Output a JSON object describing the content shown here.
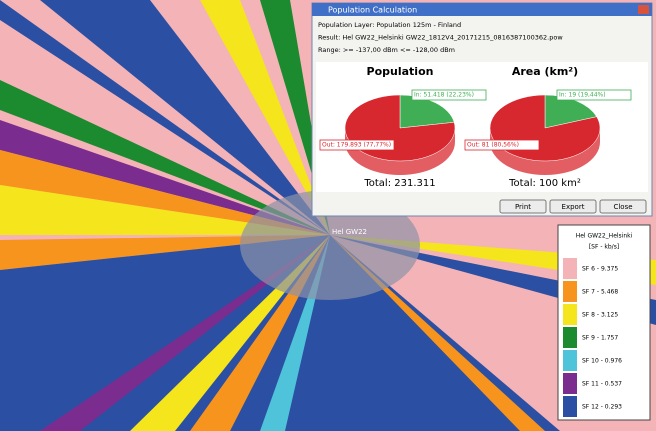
{
  "window": {
    "title": "Population Calculation",
    "info": [
      "Population Layer: Population 125m - Finland",
      "Result: Hel GW22_Helsinki GW22_1812V4_20171215_0816387100362.pow",
      "Range: >= -137,00 dBm <= -128,00 dBm"
    ],
    "pies": [
      {
        "title": "Population",
        "total": "Total: 231.311",
        "slices": [
          {
            "label": "In: 51.418 (22,23%)",
            "percent": 22.23,
            "color": "#3fae55"
          },
          {
            "label": "Out: 179.893 (77,77%)",
            "percent": 77.77,
            "color": "#d8282f"
          }
        ]
      },
      {
        "title": "Area (km²)",
        "total": "Total: 100 km²",
        "slices": [
          {
            "label": "In: 19 (19,44%)",
            "percent": 19.44,
            "color": "#3fae55"
          },
          {
            "label": "Out: 81 (80,56%)",
            "percent": 80.56,
            "color": "#d8282f"
          }
        ]
      }
    ],
    "buttons": [
      "Print",
      "Export",
      "Close"
    ]
  },
  "map": {
    "site_label": "Hel GW22"
  },
  "legend": {
    "title": "Hel GW22_Helsinki",
    "unit": "[SF - kb/s]",
    "items": [
      {
        "label": "SF 6 - 9.375",
        "color": "#f4b3b6"
      },
      {
        "label": "SF 7 - 5.468",
        "color": "#f7941d"
      },
      {
        "label": "SF 8 - 3.125",
        "color": "#f4e51c"
      },
      {
        "label": "SF 9 - 1.757",
        "color": "#1c8a2e"
      },
      {
        "label": "SF 10 - 0.976",
        "color": "#4fc3d9"
      },
      {
        "label": "SF 11 - 0.537",
        "color": "#7b2c8f"
      },
      {
        "label": "SF 12 - 0.293",
        "color": "#2b4fa3"
      }
    ]
  }
}
